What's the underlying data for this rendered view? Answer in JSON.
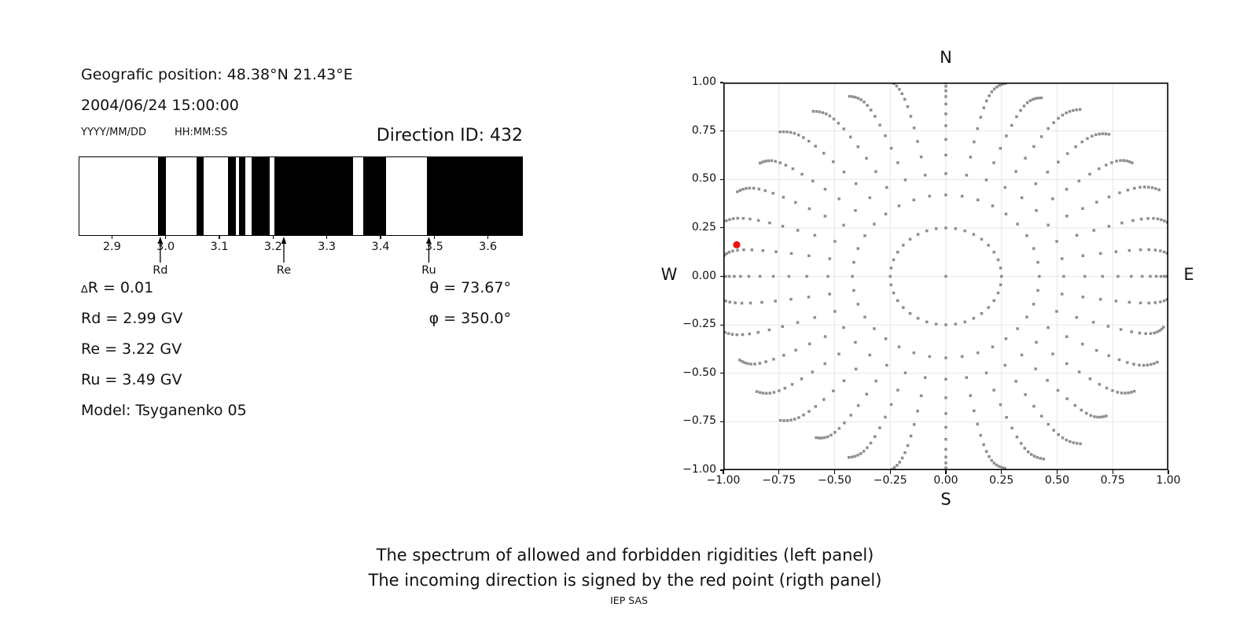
{
  "header": {
    "geo_position": "Geografic position: 48.38°N 21.43°E",
    "datetime": "2004/06/24 15:00:00",
    "date_format": "YYYY/MM/DD",
    "time_format": "HH:MM:SS",
    "direction_id": "Direction ID: 432"
  },
  "left_panel": {
    "annotations": {
      "delta_symbol": "∆",
      "delta_rest": "R = 0.01",
      "rd": "Rd = 2.99 GV",
      "re": "Re = 3.22 GV",
      "ru": "Ru = 3.49 GV",
      "model": "Model: Tsyganenko 05",
      "theta": "θ = 73.67°",
      "phi": "φ = 350.0°"
    }
  },
  "right_panel": {
    "compass": {
      "north": "N",
      "south": "S",
      "west": "W",
      "east": "E"
    }
  },
  "caption": {
    "line1": "The spectrum of allowed and forbidden rigidities (left panel)",
    "line2": "The incoming direction is signed by the red point (rigth panel)",
    "credit": "IEP SAS"
  },
  "chart_data": [
    {
      "type": "bar",
      "name": "allowed-forbidden-rigidity-spectrum",
      "xlim": [
        2.838,
        3.665
      ],
      "x_tick_values": [
        2.9,
        3.0,
        3.1,
        3.2,
        3.3,
        3.4,
        3.5,
        3.6
      ],
      "x_tick_labels": [
        "2.9",
        "3.0",
        "3.1",
        "3.2",
        "3.3",
        "3.4",
        "3.5",
        "3.6"
      ],
      "forbidden_bands_gv": [
        [
          2.987,
          3.001
        ],
        [
          3.059,
          3.072
        ],
        [
          3.117,
          3.131
        ],
        [
          3.137,
          3.149
        ],
        [
          3.161,
          3.195
        ],
        [
          3.203,
          3.35
        ],
        [
          3.369,
          3.411
        ],
        [
          3.488,
          3.665
        ]
      ],
      "band_color": "#000000",
      "allowed_color": "#ffffff",
      "cutoffs": [
        {
          "label": "Rd",
          "value_gv": 2.99
        },
        {
          "label": "Re",
          "value_gv": 3.22
        },
        {
          "label": "Ru",
          "value_gv": 3.49
        }
      ],
      "delta_r_gv": 0.01,
      "theta_deg": 73.67,
      "phi_deg": 350.0
    },
    {
      "type": "scatter",
      "name": "incoming-direction-map",
      "xlim": [
        -1,
        1
      ],
      "ylim": [
        -1,
        1
      ],
      "x_tick_values": [
        -1,
        -0.75,
        -0.5,
        -0.25,
        0,
        0.25,
        0.5,
        0.75,
        1
      ],
      "x_tick_labels": [
        "−1.00",
        "−0.75",
        "−0.50",
        "−0.25",
        "0.00",
        "0.25",
        "0.50",
        "0.75",
        "1.00"
      ],
      "y_tick_values": [
        1,
        0.75,
        0.5,
        0.25,
        0,
        -0.25,
        -0.5,
        -0.75,
        -1
      ],
      "y_tick_labels": [
        "1.00",
        "0.75",
        "0.50",
        "0.25",
        "0.00",
        "−0.25",
        "−0.50",
        "−0.75",
        "−1.00"
      ],
      "grid": true,
      "grid_color": "#e7e7e7",
      "dot_color": "#8e8e8e",
      "dot_size_px": 3.5,
      "center_point": {
        "x": 0,
        "y": 0
      },
      "red_point": {
        "x": -0.94,
        "y": 0.163,
        "color": "#ee1111"
      },
      "spokes": {
        "angle_start_deg": 0,
        "angle_step_deg": 10,
        "count": 36,
        "radii": [
          0.25,
          0.42,
          0.53,
          0.625,
          0.705,
          0.775,
          0.835,
          0.885,
          0.922,
          0.95,
          0.972,
          0.988,
          1.0,
          1.01,
          1.018,
          1.025
        ],
        "curl_deg": 5,
        "outer_radius_jitter": 0.05
      }
    }
  ]
}
